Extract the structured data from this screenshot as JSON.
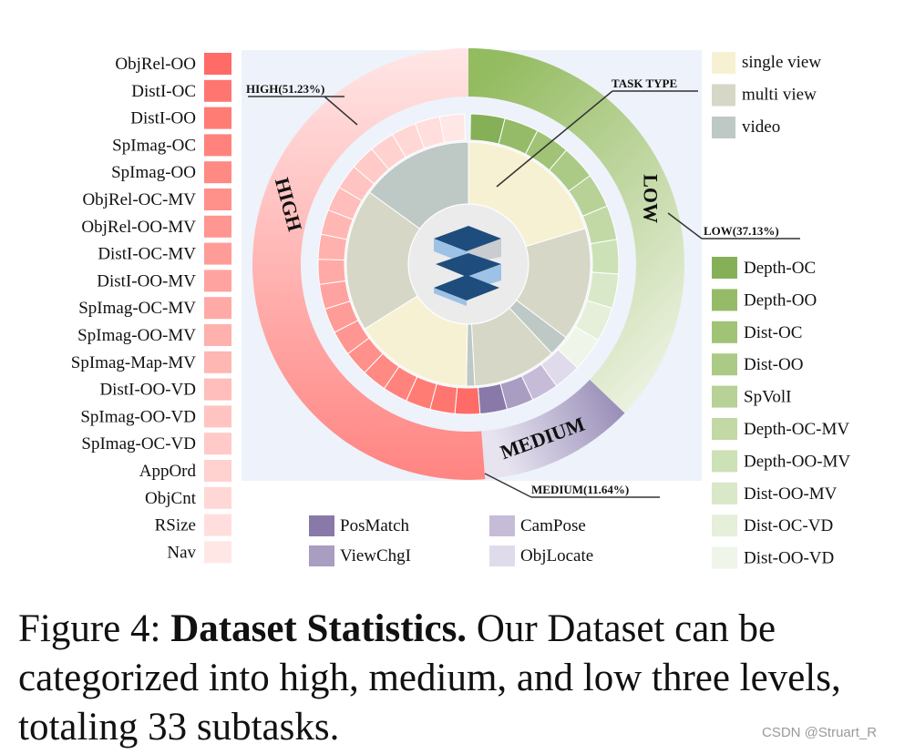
{
  "chart_data": {
    "type": "pie",
    "subtype": "sunburst",
    "total_subtasks": 33,
    "levels": [
      {
        "name": "HIGH",
        "percent": 51.23,
        "label": "HIGH(51.23%)",
        "color": "#ff7b72"
      },
      {
        "name": "LOW",
        "percent": 37.13,
        "label": "LOW(37.13%)",
        "color": "#8fb866"
      },
      {
        "name": "MEDIUM",
        "percent": 11.64,
        "label": "MEDIUM(11.64%)",
        "color": "#8979a8"
      }
    ],
    "task_type_label": "TASK TYPE",
    "task_type_legend": [
      {
        "name": "single view",
        "color": "#f7f1d3"
      },
      {
        "name": "multi view",
        "color": "#d6d7c6"
      },
      {
        "name": "video",
        "color": "#bec9c6"
      }
    ],
    "task_type_ring": [
      {
        "type": "single view",
        "color": "#f7f1d3",
        "start": 0,
        "end": 73
      },
      {
        "type": "multi view",
        "color": "#d6d7c6",
        "start": 73,
        "end": 127
      },
      {
        "type": "video",
        "color": "#bec9c6",
        "start": 127,
        "end": 137
      },
      {
        "type": "multi view",
        "color": "#d6d7c6",
        "start": 137,
        "end": 177
      },
      {
        "type": "video",
        "color": "#bec9c6",
        "start": 177,
        "end": 181
      },
      {
        "type": "single view",
        "color": "#f7f1d3",
        "start": 181,
        "end": 238
      },
      {
        "type": "multi view",
        "color": "#d6d7c6",
        "start": 238,
        "end": 306
      },
      {
        "type": "video",
        "color": "#bec9c6",
        "start": 306,
        "end": 360
      }
    ],
    "subtasks_high": [
      {
        "name": "ObjRel-OO",
        "color": "#ff6b66"
      },
      {
        "name": "DistI-OC",
        "color": "#ff7671"
      },
      {
        "name": "DistI-OO",
        "color": "#ff7c75"
      },
      {
        "name": "SpImag-OC",
        "color": "#ff837c"
      },
      {
        "name": "SpImag-OO",
        "color": "#ff8983"
      },
      {
        "name": "ObjRel-OC-MV",
        "color": "#ff908a"
      },
      {
        "name": "ObjRel-OO-MV",
        "color": "#ff9691"
      },
      {
        "name": "DistI-OC-MV",
        "color": "#ff9c98"
      },
      {
        "name": "DistI-OO-MV",
        "color": "#ffa3a0"
      },
      {
        "name": "SpImag-OC-MV",
        "color": "#ffaaa6"
      },
      {
        "name": "SpImag-OO-MV",
        "color": "#ffb1ad"
      },
      {
        "name": "SpImag-Map-MV",
        "color": "#ffb7b4"
      },
      {
        "name": "DistI-OO-VD",
        "color": "#ffbdbb"
      },
      {
        "name": "SpImag-OO-VD",
        "color": "#ffc4c2"
      },
      {
        "name": "SpImag-OC-VD",
        "color": "#ffcac8"
      },
      {
        "name": "AppOrd",
        "color": "#ffd1cf"
      },
      {
        "name": "ObjCnt",
        "color": "#ffd8d6"
      },
      {
        "name": "RSize",
        "color": "#ffdedd"
      },
      {
        "name": "Nav",
        "color": "#ffe7e6"
      }
    ],
    "subtasks_low": [
      {
        "name": "Depth-OC",
        "color": "#86b058"
      },
      {
        "name": "Depth-OO",
        "color": "#95bb68"
      },
      {
        "name": "Dist-OC",
        "color": "#a0c376"
      },
      {
        "name": "Dist-OO",
        "color": "#abca85"
      },
      {
        "name": "SpVolI",
        "color": "#b7d196"
      },
      {
        "name": "Depth-OC-MV",
        "color": "#c2d9a6"
      },
      {
        "name": "Depth-OO-MV",
        "color": "#cde1b6"
      },
      {
        "name": "Dist-OO-MV",
        "color": "#d9e8c8"
      },
      {
        "name": "Dist-OC-VD",
        "color": "#e5efd9"
      },
      {
        "name": "Dist-OO-VD",
        "color": "#eff5e8"
      }
    ],
    "subtasks_medium": [
      {
        "name": "PosMatch",
        "color": "#8979a8"
      },
      {
        "name": "ViewChgI",
        "color": "#a99dc2"
      },
      {
        "name": "CamPose",
        "color": "#c6bcd8"
      },
      {
        "name": "ObjLocate",
        "color": "#e0dbea"
      }
    ],
    "ring_labels": {
      "high": "HIGH",
      "low": "LOW",
      "medium": "MEDIUM"
    }
  },
  "caption": {
    "prefix": "Figure 4:",
    "title": "Dataset Statistics.",
    "text": "Our Dataset can be categorized into high, medium, and low three levels, totaling 33 subtasks."
  },
  "watermark": "CSDN @Struart_R"
}
